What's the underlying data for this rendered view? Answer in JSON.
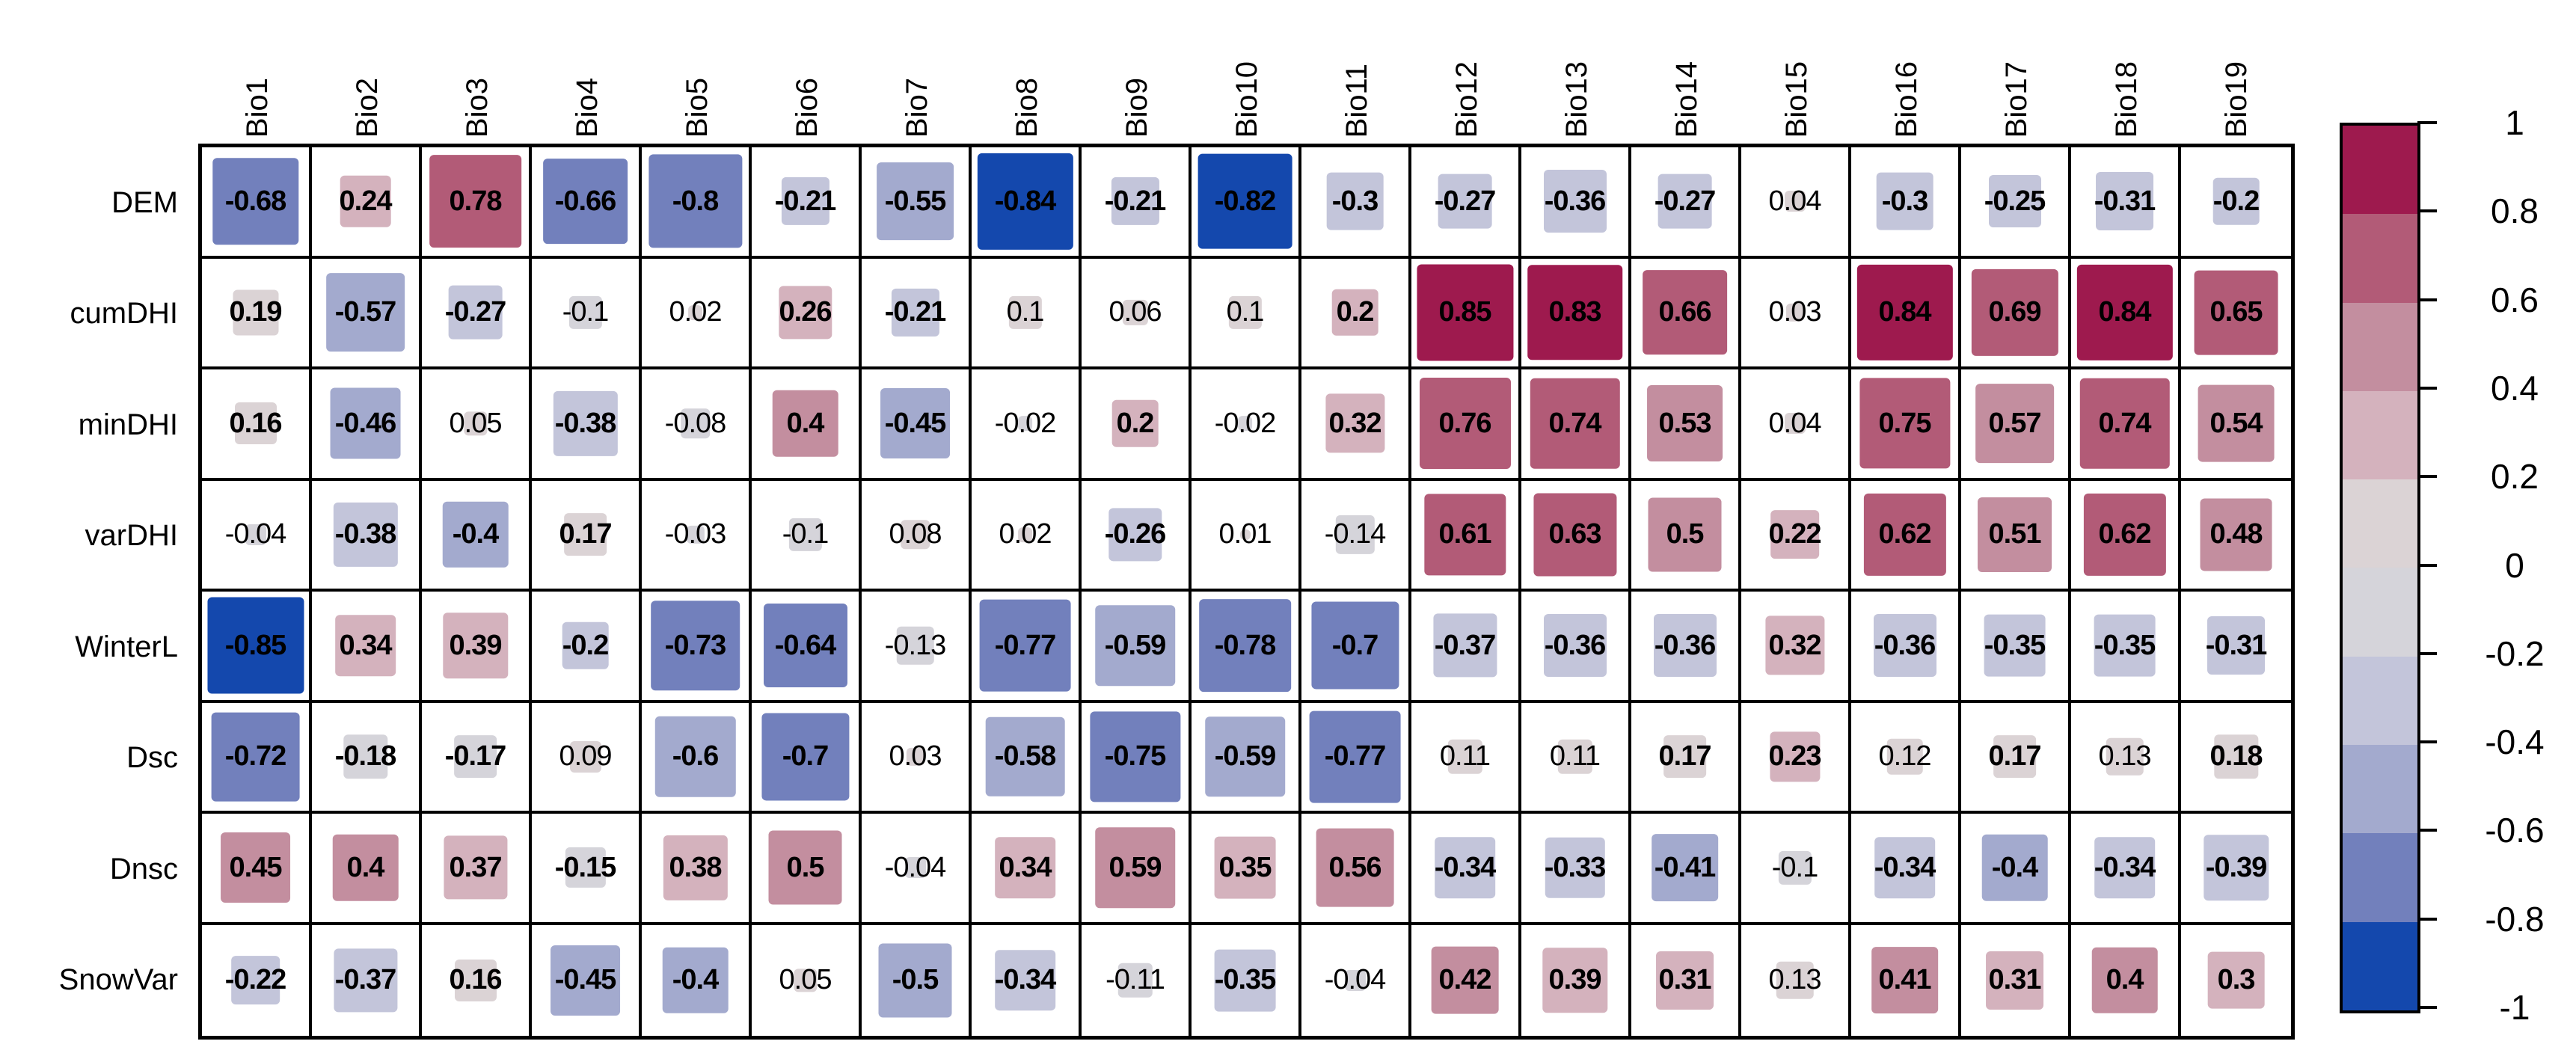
{
  "chart_data": {
    "type": "heatmap",
    "title": "",
    "columns": [
      "Bio1",
      "Bio2",
      "Bio3",
      "Bio4",
      "Bio5",
      "Bio6",
      "Bio7",
      "Bio8",
      "Bio9",
      "Bio10",
      "Bio11",
      "Bio12",
      "Bio13",
      "Bio14",
      "Bio15",
      "Bio16",
      "Bio17",
      "Bio18",
      "Bio19"
    ],
    "rows": [
      "DEM",
      "cumDHI",
      "minDHI",
      "varDHI",
      "WinterL",
      "Dsc",
      "Dnsc",
      "SnowVar"
    ],
    "values": [
      [
        "-0.68",
        "0.24",
        "0.78",
        "-0.66",
        "-0.8",
        "-0.21",
        "-0.55",
        "-0.84",
        "-0.21",
        "-0.82",
        "-0.3",
        "-0.27",
        "-0.36",
        "-0.27",
        "0.04",
        "-0.3",
        "-0.25",
        "-0.31",
        "-0.2"
      ],
      [
        "0.19",
        "-0.57",
        "-0.27",
        "-0.1",
        "0.02",
        "0.26",
        "-0.21",
        "0.1",
        "0.06",
        "0.1",
        "0.2",
        "0.85",
        "0.83",
        "0.66",
        "0.03",
        "0.84",
        "0.69",
        "0.84",
        "0.65"
      ],
      [
        "0.16",
        "-0.46",
        "0.05",
        "-0.38",
        "-0.08",
        "0.4",
        "-0.45",
        "-0.02",
        "0.2",
        "-0.02",
        "0.32",
        "0.76",
        "0.74",
        "0.53",
        "0.04",
        "0.75",
        "0.57",
        "0.74",
        "0.54"
      ],
      [
        "-0.04",
        "-0.38",
        "-0.4",
        "0.17",
        "-0.03",
        "-0.1",
        "0.08",
        "0.02",
        "-0.26",
        "0.01",
        "-0.14",
        "0.61",
        "0.63",
        "0.5",
        "0.22",
        "0.62",
        "0.51",
        "0.62",
        "0.48"
      ],
      [
        "-0.85",
        "0.34",
        "0.39",
        "-0.2",
        "-0.73",
        "-0.64",
        "-0.13",
        "-0.77",
        "-0.59",
        "-0.78",
        "-0.7",
        "-0.37",
        "-0.36",
        "-0.36",
        "0.32",
        "-0.36",
        "-0.35",
        "-0.35",
        "-0.31"
      ],
      [
        "-0.72",
        "-0.18",
        "-0.17",
        "0.09",
        "-0.6",
        "-0.7",
        "0.03",
        "-0.58",
        "-0.75",
        "-0.59",
        "-0.77",
        "0.11",
        "0.11",
        "0.17",
        "0.23",
        "0.12",
        "0.17",
        "0.13",
        "0.18"
      ],
      [
        "0.45",
        "0.4",
        "0.37",
        "-0.15",
        "0.38",
        "0.5",
        "-0.04",
        "0.34",
        "0.59",
        "0.35",
        "0.56",
        "-0.34",
        "-0.33",
        "-0.41",
        "-0.1",
        "-0.34",
        "-0.4",
        "-0.34",
        "-0.39"
      ],
      [
        "-0.22",
        "-0.37",
        "0.16",
        "-0.45",
        "-0.4",
        "0.05",
        "-0.5",
        "-0.34",
        "-0.11",
        "-0.35",
        "-0.04",
        "0.42",
        "0.39",
        "0.31",
        "0.13",
        "0.41",
        "0.31",
        "0.4",
        "0.3"
      ]
    ],
    "value_range": [
      -1,
      1
    ],
    "bold_abs_threshold": 0.15,
    "square_size_rule": "side = sqrt(|r|) * cell",
    "palette_bins_low_to_high": [
      "#1448ad",
      "#7280bc",
      "#a3aace",
      "#c3c5da",
      "#d5d4da",
      "#dbd3d5",
      "#d4b2bd",
      "#c38e9f",
      "#b25b77",
      "#9e1a4e"
    ],
    "bin_overrides": {
      "-0.2": 3,
      "-0.4": 2
    },
    "grid_line_color": "#000000",
    "cell_background": "#ffffff",
    "colorbar": {
      "position": "right",
      "tick_labels": [
        "1",
        "0.8",
        "0.6",
        "0.4",
        "0.2",
        "0",
        "-0.2",
        "-0.4",
        "-0.6",
        "-0.8",
        "-1"
      ],
      "colors_top_to_bottom": [
        "#9e1a4e",
        "#b25b77",
        "#c38e9f",
        "#d4b2bd",
        "#dbd3d5",
        "#d5d4da",
        "#c3c5da",
        "#a3aace",
        "#7280bc",
        "#1448ad"
      ]
    }
  }
}
